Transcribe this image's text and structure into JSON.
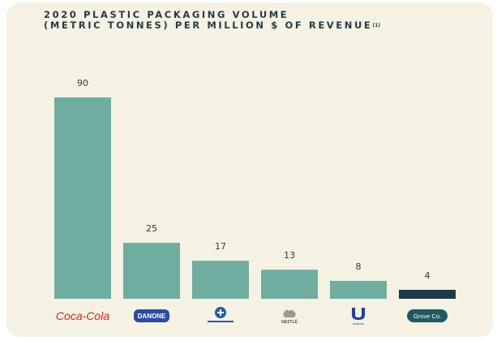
{
  "chart_data": {
    "type": "bar",
    "title_line1": "2020 PLASTIC PACKAGING VOLUME",
    "title_line2": "(METRIC TONNES) PER MILLION $ OF REVENUE",
    "title_footnote": "(1)",
    "categories": [
      "Coca-Cola",
      "DANONE",
      "",
      "NESTLÉ",
      "Unilever",
      "Grove Co."
    ],
    "values": [
      90,
      25,
      17,
      13,
      8,
      4
    ],
    "value_labels": [
      "90",
      "25",
      "17",
      "13",
      "8",
      "4"
    ],
    "bar_colors": [
      "#6fada0",
      "#6fada0",
      "#6fada0",
      "#6fada0",
      "#6fada0",
      "#1b3c49"
    ],
    "ylim": [
      0,
      90
    ],
    "xlabel": "",
    "ylabel": "",
    "grid": false,
    "legend": "none"
  },
  "logos": [
    {
      "name": "Coca-Cola",
      "icon": "coca-cola-logo",
      "color": "#d9242b"
    },
    {
      "name": "DANONE",
      "icon": "danone-logo",
      "color": "#2a4da3"
    },
    {
      "name": "",
      "icon": "colgate-logo",
      "color": "#1f5fa8"
    },
    {
      "name": "NESTLÉ",
      "icon": "nestle-logo",
      "color": "#555555"
    },
    {
      "name": "Unilever",
      "icon": "unilever-logo",
      "color": "#1f3fa0"
    },
    {
      "name": "Grove Co.",
      "icon": "grove-co-logo",
      "color": "#1e5a66"
    }
  ]
}
